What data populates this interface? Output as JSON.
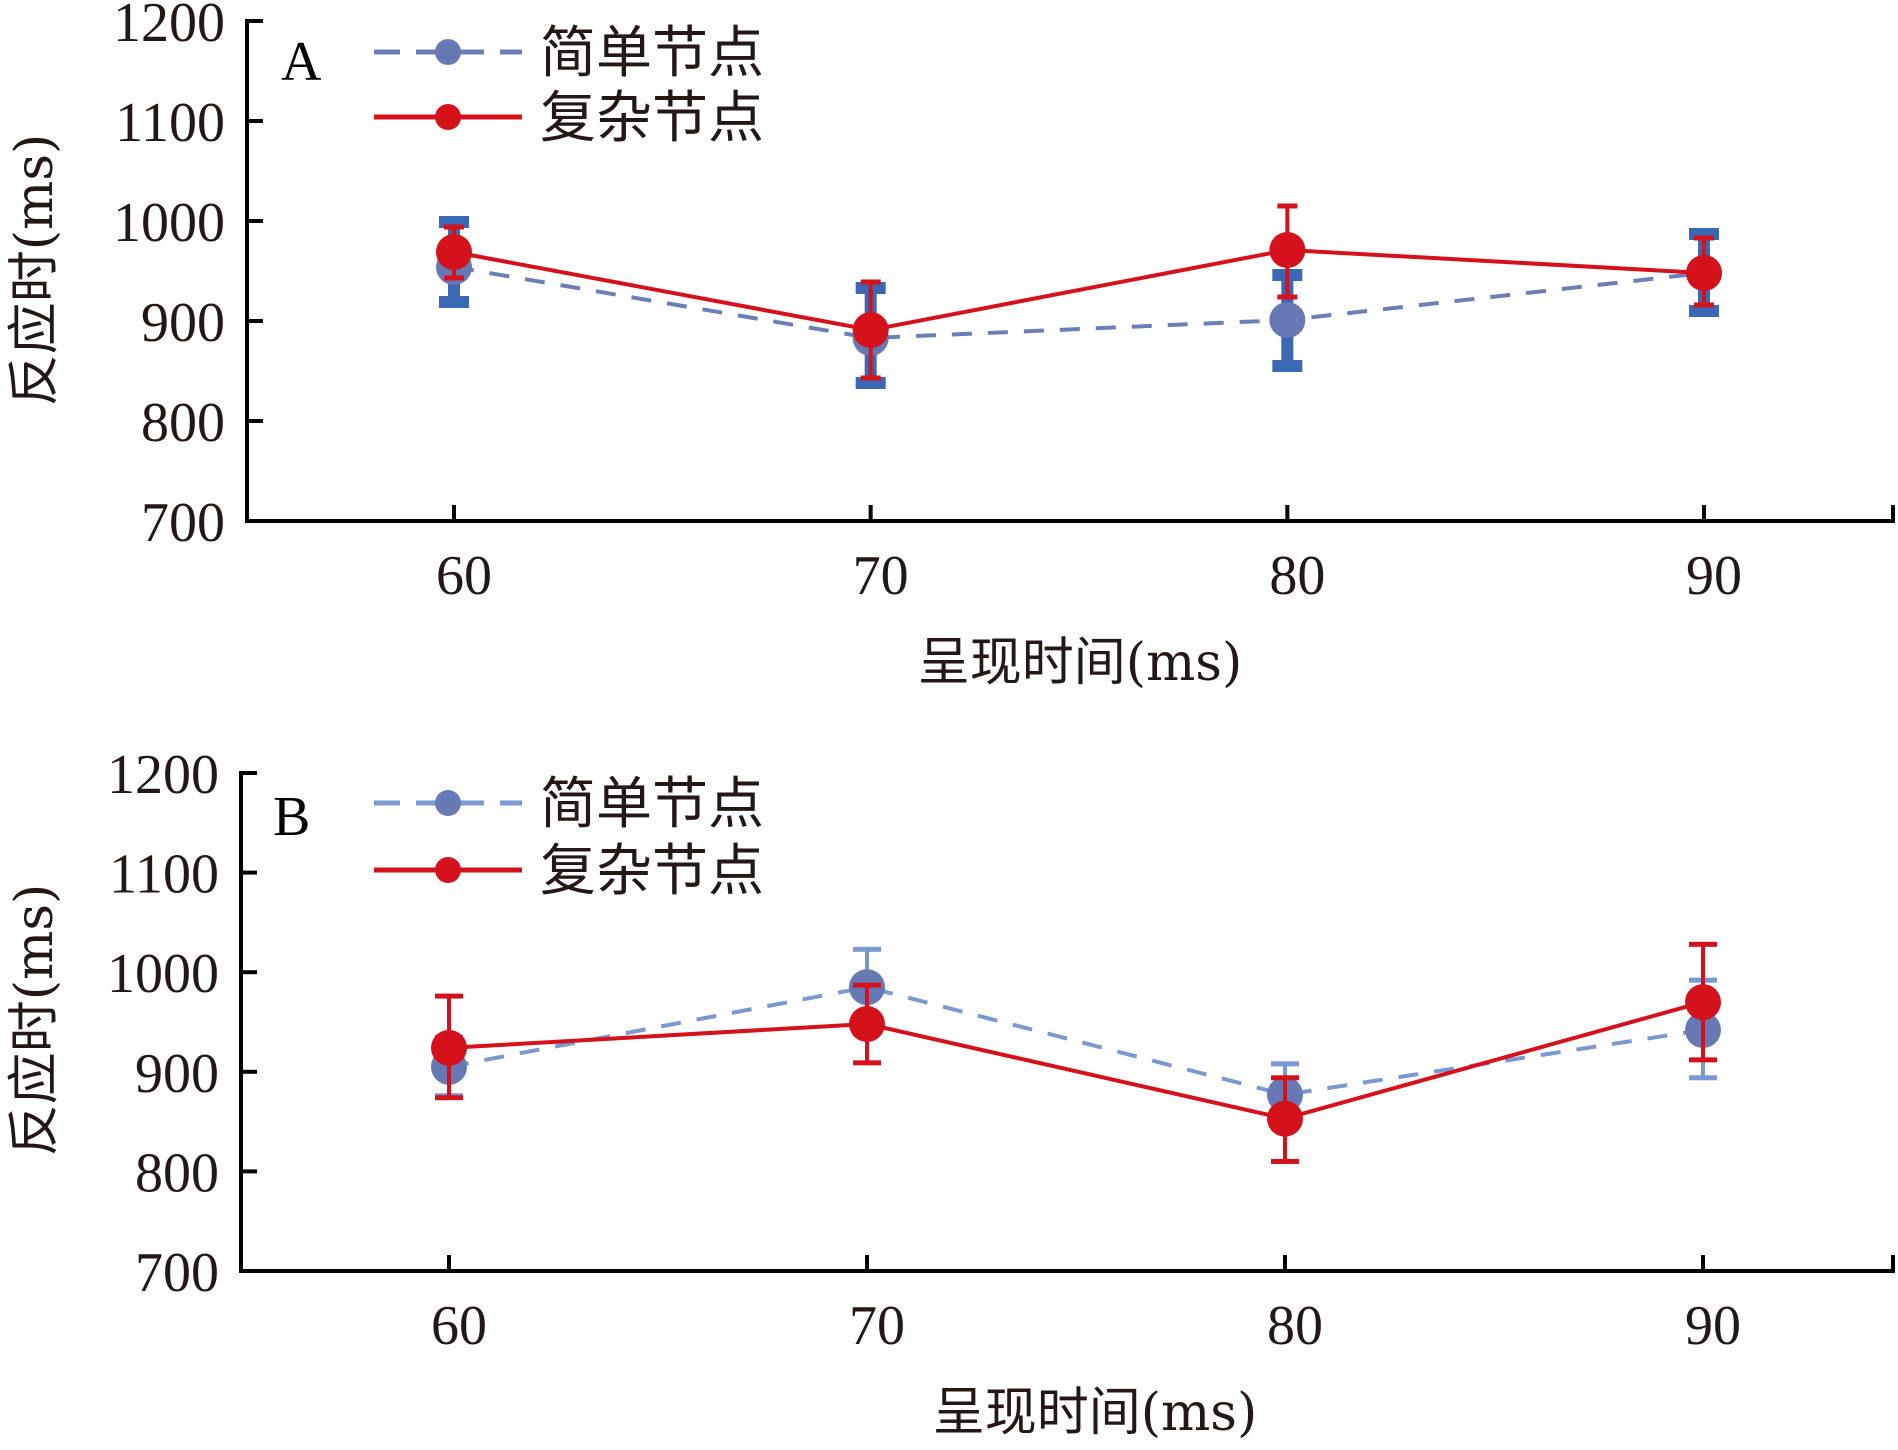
{
  "colors": {
    "simple_line": "#6a7fb8",
    "simple_marker": "#6679b5",
    "simple_err_A": "#3a68b5",
    "simple_line_B": "#7a98d2",
    "simple_err_B": "#7a98d2",
    "complex": "#d5111b",
    "axis": "#000000",
    "text": "#231815"
  },
  "chart_data": [
    {
      "type": "line",
      "panel_label": "A",
      "title": "",
      "xlabel": "呈现时间(ms)",
      "ylabel": "反应时(ms)",
      "x": [
        60,
        70,
        80,
        90
      ],
      "x_tick_labels": [
        "60",
        "70",
        "80",
        "90"
      ],
      "y_ticks": [
        700,
        800,
        900,
        1000,
        1100,
        1200
      ],
      "y_tick_labels": [
        "700",
        "800",
        "900",
        "1000",
        "1100",
        "1200"
      ],
      "ylim": [
        700,
        1200
      ],
      "xlim": [
        55,
        95.5
      ],
      "grid": false,
      "legend_position": "top-left",
      "series": [
        {
          "name": "简单节点",
          "style": "dashed",
          "values": [
            954,
            883,
            901,
            948
          ],
          "err_low": [
            919,
            838,
            855,
            910
          ],
          "err_high": [
            999,
            933,
            946,
            987
          ]
        },
        {
          "name": "复杂节点",
          "style": "solid",
          "values": [
            969,
            891,
            971,
            948
          ],
          "err_low": [
            943,
            843,
            924,
            916
          ],
          "err_high": [
            994,
            939,
            1015,
            983
          ]
        }
      ]
    },
    {
      "type": "line",
      "panel_label": "B",
      "title": "",
      "xlabel": "呈现时间(ms)",
      "ylabel": "反应时(ms)",
      "x": [
        60,
        70,
        80,
        90
      ],
      "x_tick_labels": [
        "60",
        "70",
        "80",
        "90"
      ],
      "y_ticks": [
        700,
        800,
        900,
        1000,
        1100,
        1200
      ],
      "y_tick_labels": [
        "700",
        "800",
        "900",
        "1000",
        "1100",
        "1200"
      ],
      "ylim": [
        700,
        1200
      ],
      "xlim": [
        55,
        95.5
      ],
      "grid": false,
      "legend_position": "top-left",
      "series": [
        {
          "name": "简单节点",
          "style": "dashed",
          "values": [
            905,
            985,
            877,
            942
          ],
          "err_low": [
            876,
            947,
            846,
            894
          ],
          "err_high": [
            935,
            1023,
            908,
            992
          ]
        },
        {
          "name": "复杂节点",
          "style": "solid",
          "values": [
            924,
            948,
            853,
            970
          ],
          "err_low": [
            874,
            909,
            810,
            912
          ],
          "err_high": [
            976,
            987,
            894,
            1028
          ]
        }
      ]
    }
  ]
}
